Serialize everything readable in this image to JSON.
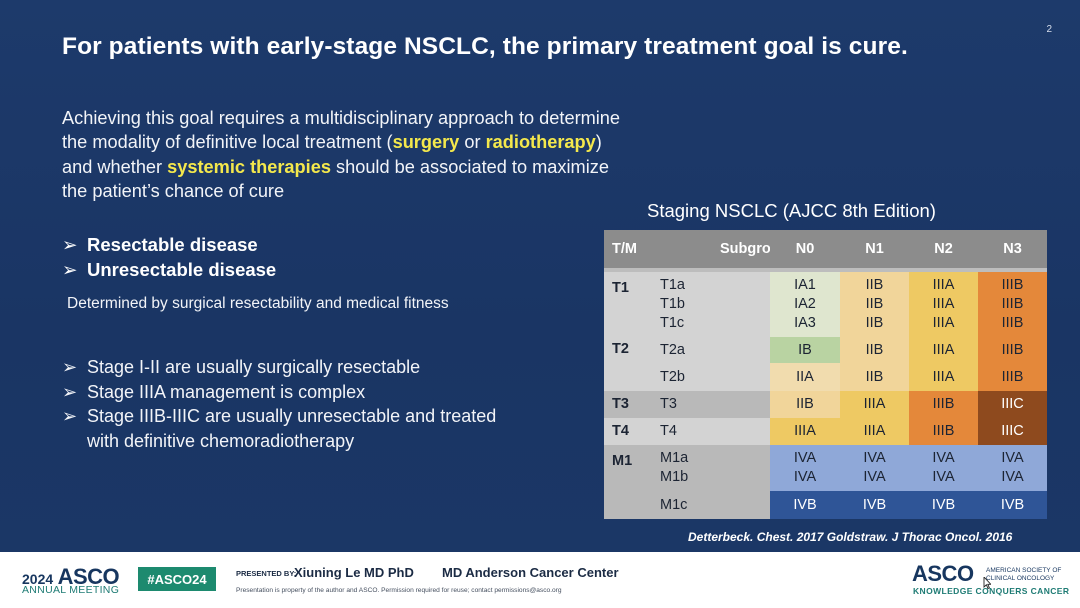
{
  "slide": {
    "page_number": "2",
    "title": "For patients with early-stage NSCLC, the primary treatment goal is cure.",
    "intro": {
      "part1": "Achieving this goal requires a multidisciplinary approach to determine the modality of definitive local treatment (",
      "surgery": "surgery",
      "part2": " or ",
      "radiotherapy": "radiotherapy",
      "part3": ") and whether ",
      "systemic": "systemic therapies",
      "part4": " should be associated to maximize the patient’s chance of cure"
    },
    "bullet_glyph": "➢",
    "disease_bullets": [
      "Resectable disease",
      "Unresectable disease"
    ],
    "determined_text": "Determined by surgical resectability and medical fitness",
    "stage_bullets": [
      "Stage I-II are usually surgically resectable",
      "Stage IIIA management is complex",
      "Stage IIIB-IIIC are usually unresectable and treated with definitive chemoradiotherapy"
    ],
    "citation": "Detterbeck. Chest. 2017 Goldstraw. J Thorac Oncol. 2016"
  },
  "staging_table": {
    "title": "Staging NSCLC (AJCC 8th Edition)",
    "headers": [
      "T/M",
      "Subgroup",
      "N0",
      "N1",
      "N2",
      "N3"
    ],
    "groups": [
      "T1",
      "T2",
      "T3",
      "T4",
      "M1"
    ],
    "rows": [
      {
        "subgroups": [
          "T1a",
          "T1b",
          "T1c"
        ],
        "n0": [
          "IA1",
          "IA2",
          "IA3"
        ],
        "n1": [
          "IIB",
          "IIB",
          "IIB"
        ],
        "n2": [
          "IIIA",
          "IIIA",
          "IIIA"
        ],
        "n3": [
          "IIIB",
          "IIIB",
          "IIIB"
        ]
      },
      {
        "subgroups": [
          "T2a"
        ],
        "n0": [
          "IB"
        ],
        "n1": [
          "IIB"
        ],
        "n2": [
          "IIIA"
        ],
        "n3": [
          "IIIB"
        ]
      },
      {
        "subgroups": [
          "T2b"
        ],
        "n0": [
          "IIA"
        ],
        "n1": [
          "IIB"
        ],
        "n2": [
          "IIIA"
        ],
        "n3": [
          "IIIB"
        ]
      },
      {
        "subgroups": [
          "T3"
        ],
        "n0": [
          "IIB"
        ],
        "n1": [
          "IIIA"
        ],
        "n2": [
          "IIIB"
        ],
        "n3": [
          "IIIC"
        ]
      },
      {
        "subgroups": [
          "T4"
        ],
        "n0": [
          "IIIA"
        ],
        "n1": [
          "IIIA"
        ],
        "n2": [
          "IIIB"
        ],
        "n3": [
          "IIIC"
        ]
      },
      {
        "subgroups": [
          "M1a",
          "M1b"
        ],
        "n0": [
          "IVA",
          "IVA"
        ],
        "n1": [
          "IVA",
          "IVA"
        ],
        "n2": [
          "IVA",
          "IVA"
        ],
        "n3": [
          "IVA",
          "IVA"
        ]
      },
      {
        "subgroups": [
          "M1c"
        ],
        "n0": [
          "IVB"
        ],
        "n1": [
          "IVB"
        ],
        "n2": [
          "IVB"
        ],
        "n3": [
          "IVB"
        ]
      }
    ],
    "stage_colors": {
      "IA": "#dfe6cf",
      "IB": "#b9d3a2",
      "IIA": "#f1dcae",
      "IIB": "#f1d59a",
      "IIIA": "#eec963",
      "IIIB": "#e4883a",
      "IIIC": "#8e4a1e",
      "IVA": "#8fa8d8",
      "IVB": "#2f5597"
    }
  },
  "footer": {
    "meeting_year": "2024",
    "meeting_name": "ASCO",
    "meeting_sub": "ANNUAL MEETING",
    "hashtag": "#ASCO24",
    "presented_by_label": "PRESENTED BY:",
    "presenter": "Xiuning Le MD PhD",
    "institution": "MD Anderson Cancer Center",
    "disclaimer": "Presentation is property of the author and ASCO. Permission required for reuse; contact permissions@asco.org",
    "org_logo": "ASCO",
    "org_line1": "AMERICAN SOCIETY OF",
    "org_line2": "CLINICAL ONCOLOGY",
    "tagline": "KNOWLEDGE CONQUERS CANCER",
    "cursor_icon": "mouse-pointer-icon"
  }
}
